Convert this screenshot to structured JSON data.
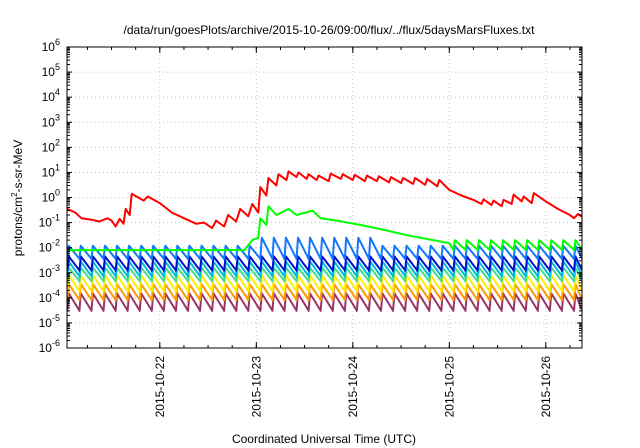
{
  "chart_data": {
    "type": "line",
    "title": "/data/run/goesPlots/archive/2015-10-26/09:00/flux/../flux/5daysMarsFluxes.txt",
    "xlabel": "Coordinated Universal Time (UTC)",
    "ylabel_parts": {
      "base": "protons/cm",
      "sup": "2",
      "rest": "-s-sr-MeV"
    },
    "yscale": "log",
    "ylim": [
      1e-06,
      1000000.0
    ],
    "xlim": [
      "2015-10-21T00:55",
      "2015-10-26T09:00"
    ],
    "grid": true,
    "legend": "none",
    "y_ticks": [
      {
        "base": "10",
        "exp": "-6"
      },
      {
        "base": "10",
        "exp": "-5"
      },
      {
        "base": "10",
        "exp": "-4"
      },
      {
        "base": "10",
        "exp": "-3"
      },
      {
        "base": "10",
        "exp": "-2"
      },
      {
        "base": "10",
        "exp": "-1"
      },
      {
        "base": "10",
        "exp": "0"
      },
      {
        "base": "10",
        "exp": "1"
      },
      {
        "base": "10",
        "exp": "2"
      },
      {
        "base": "10",
        "exp": "3"
      },
      {
        "base": "10",
        "exp": "4"
      },
      {
        "base": "10",
        "exp": "5"
      },
      {
        "base": "10",
        "exp": "6"
      }
    ],
    "x_ticks": [
      "2015-10-22",
      "2015-10-23",
      "2015-10-24",
      "2015-10-25",
      "2015-10-26"
    ],
    "series": [
      {
        "color": "#ff0000",
        "points": [
          [
            "2015-10-21T01:00",
            0.35
          ],
          [
            "2015-10-21T03:00",
            0.25
          ],
          [
            "2015-10-21T04:30",
            0.15
          ],
          [
            "2015-10-21T07:00",
            0.13
          ],
          [
            "2015-10-21T09:00",
            0.11
          ],
          [
            "2015-10-21T11:00",
            0.15
          ],
          [
            "2015-10-21T12:00",
            0.12
          ],
          [
            "2015-10-21T13:00",
            0.07
          ],
          [
            "2015-10-21T14:00",
            0.14
          ],
          [
            "2015-10-21T15:00",
            0.09
          ],
          [
            "2015-10-21T15:30",
            0.35
          ],
          [
            "2015-10-21T16:30",
            0.2
          ],
          [
            "2015-10-21T17:00",
            1.4
          ],
          [
            "2015-10-21T20:00",
            0.75
          ],
          [
            "2015-10-21T21:00",
            1.1
          ],
          [
            "2015-10-22T00:00",
            0.6
          ],
          [
            "2015-10-22T03:00",
            0.25
          ],
          [
            "2015-10-22T06:00",
            0.15
          ],
          [
            "2015-10-22T09:00",
            0.09
          ],
          [
            "2015-10-22T11:00",
            0.1
          ],
          [
            "2015-10-22T13:00",
            0.06
          ],
          [
            "2015-10-22T14:00",
            0.12
          ],
          [
            "2015-10-22T16:00",
            0.07
          ],
          [
            "2015-10-22T17:00",
            0.2
          ],
          [
            "2015-10-22T19:00",
            0.11
          ],
          [
            "2015-10-22T20:00",
            0.35
          ],
          [
            "2015-10-22T22:00",
            0.18
          ],
          [
            "2015-10-22T23:00",
            0.55
          ],
          [
            "2015-10-23T00:30",
            0.25
          ],
          [
            "2015-10-23T01:00",
            2.6
          ],
          [
            "2015-10-23T02:30",
            1.2
          ],
          [
            "2015-10-23T03:00",
            6.0
          ],
          [
            "2015-10-23T05:00",
            3.0
          ],
          [
            "2015-10-23T05:30",
            8.5
          ],
          [
            "2015-10-23T07:30",
            5.0
          ],
          [
            "2015-10-23T08:00",
            11.0
          ],
          [
            "2015-10-23T10:00",
            6.5
          ],
          [
            "2015-10-23T10:30",
            10.0
          ],
          [
            "2015-10-23T12:30",
            5.5
          ],
          [
            "2015-10-23T13:00",
            8.5
          ],
          [
            "2015-10-23T15:00",
            5.0
          ],
          [
            "2015-10-23T15:30",
            7.5
          ],
          [
            "2015-10-23T18:00",
            4.5
          ],
          [
            "2015-10-23T18:30",
            9.0
          ],
          [
            "2015-10-23T21:00",
            5.5
          ],
          [
            "2015-10-23T21:30",
            8.5
          ],
          [
            "2015-10-24T00:00",
            5.0
          ],
          [
            "2015-10-24T00:30",
            8.0
          ],
          [
            "2015-10-24T03:00",
            4.5
          ],
          [
            "2015-10-24T03:30",
            7.5
          ],
          [
            "2015-10-24T06:00",
            4.5
          ],
          [
            "2015-10-24T06:30",
            7.0
          ],
          [
            "2015-10-24T09:00",
            4.0
          ],
          [
            "2015-10-24T09:30",
            6.5
          ],
          [
            "2015-10-24T12:00",
            3.8
          ],
          [
            "2015-10-24T12:30",
            6.0
          ],
          [
            "2015-10-24T15:00",
            3.5
          ],
          [
            "2015-10-24T15:30",
            6.0
          ],
          [
            "2015-10-24T18:00",
            3.2
          ],
          [
            "2015-10-24T18:30",
            5.5
          ],
          [
            "2015-10-24T21:00",
            2.8
          ],
          [
            "2015-10-24T21:30",
            5.0
          ],
          [
            "2015-10-25T00:00",
            2.0
          ],
          [
            "2015-10-25T03:00",
            1.2
          ],
          [
            "2015-10-25T06:00",
            0.8
          ],
          [
            "2015-10-25T08:00",
            0.55
          ],
          [
            "2015-10-25T08:30",
            0.85
          ],
          [
            "2015-10-25T10:30",
            0.5
          ],
          [
            "2015-10-25T11:00",
            0.75
          ],
          [
            "2015-10-25T13:00",
            0.45
          ],
          [
            "2015-10-25T13:30",
            0.8
          ],
          [
            "2015-10-25T15:30",
            0.55
          ],
          [
            "2015-10-25T16:00",
            1.3
          ],
          [
            "2015-10-25T18:00",
            0.7
          ],
          [
            "2015-10-25T18:30",
            1.1
          ],
          [
            "2015-10-25T20:30",
            0.6
          ],
          [
            "2015-10-25T21:00",
            1.5
          ],
          [
            "2015-10-26T00:00",
            0.7
          ],
          [
            "2015-10-26T03:00",
            0.35
          ],
          [
            "2015-10-26T06:00",
            0.2
          ],
          [
            "2015-10-26T07:00",
            0.15
          ],
          [
            "2015-10-26T08:00",
            0.22
          ],
          [
            "2015-10-26T09:00",
            0.17
          ]
        ]
      },
      {
        "color": "#00ff00",
        "points": [
          [
            "2015-10-21T01:00",
            0.008
          ],
          [
            "2015-10-22T21:00",
            0.008
          ],
          [
            "2015-10-22T23:00",
            0.02
          ],
          [
            "2015-10-23T00:30",
            0.025
          ],
          [
            "2015-10-23T01:00",
            0.15
          ],
          [
            "2015-10-23T02:30",
            0.08
          ],
          [
            "2015-10-23T03:00",
            0.45
          ],
          [
            "2015-10-23T05:00",
            0.2
          ],
          [
            "2015-10-23T08:00",
            0.35
          ],
          [
            "2015-10-23T10:00",
            0.2
          ],
          [
            "2015-10-23T14:00",
            0.3
          ],
          [
            "2015-10-23T16:00",
            0.15
          ],
          [
            "2015-10-23T20:00",
            0.12
          ],
          [
            "2015-10-24T02:00",
            0.08
          ],
          [
            "2015-10-24T08:00",
            0.05
          ],
          [
            "2015-10-24T14:00",
            0.03
          ],
          [
            "2015-10-24T20:00",
            0.02
          ],
          [
            "2015-10-25T00:00",
            0.015
          ]
        ],
        "sawtooth": {
          "start": "2015-10-21T01:00",
          "end": "2015-10-26T09:00",
          "period_hours": 3.0,
          "low": 0.008,
          "high": 0.02
        }
      },
      {
        "color": "#1177ff",
        "sawtooth": {
          "start": "2015-10-21T01:00",
          "end": "2015-10-26T09:00",
          "period_hours": 3.0,
          "low": 0.0035,
          "high": 0.012,
          "boost": {
            "from": "2015-10-23T00:00",
            "to": "2015-10-24T06:00",
            "high": 0.025
          }
        }
      },
      {
        "color": "#0011cc",
        "sawtooth": {
          "start": "2015-10-21T01:00",
          "end": "2015-10-26T09:00",
          "period_hours": 3.0,
          "low": 0.0012,
          "high": 0.0045
        }
      },
      {
        "color": "#00bbdd",
        "sawtooth": {
          "start": "2015-10-21T01:00",
          "end": "2015-10-26T09:00",
          "period_hours": 3.0,
          "low": 0.0007,
          "high": 0.0028
        }
      },
      {
        "color": "#44dd88",
        "sawtooth": {
          "start": "2015-10-21T01:00",
          "end": "2015-10-26T09:00",
          "period_hours": 3.0,
          "low": 0.00045,
          "high": 0.0016
        }
      },
      {
        "color": "#ffee00",
        "sawtooth": {
          "start": "2015-10-21T01:00",
          "end": "2015-10-26T09:00",
          "period_hours": 3.0,
          "low": 0.00018,
          "high": 0.0008
        }
      },
      {
        "color": "#ff9900",
        "sawtooth": {
          "start": "2015-10-21T01:00",
          "end": "2015-10-26T09:00",
          "period_hours": 3.0,
          "low": 8e-05,
          "high": 0.00035
        }
      },
      {
        "color": "#993366",
        "sawtooth": {
          "start": "2015-10-21T01:00",
          "end": "2015-10-26T09:00",
          "period_hours": 3.0,
          "low": 3e-05,
          "high": 0.00015
        }
      }
    ]
  }
}
